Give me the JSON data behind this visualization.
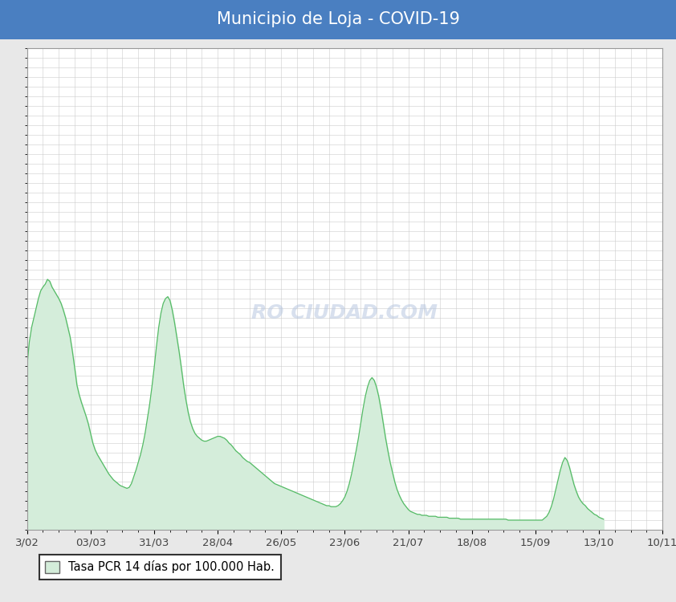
{
  "title": "Municipio de Loja - COVID-19",
  "title_bg_color": "#4a7fc1",
  "title_text_color": "#ffffff",
  "plot_bg_color": "#ffffff",
  "outer_bg_color": "#e8e8e8",
  "line_color": "#55bb66",
  "fill_color": "#d4edda",
  "grid_color": "#cccccc",
  "x_tick_labels": [
    "3/02",
    "03/03",
    "31/03",
    "28/04",
    "26/05",
    "23/06",
    "21/07",
    "18/08",
    "15/09",
    "13/10",
    "10/11"
  ],
  "legend_label": "Tasa PCR 14 días por 100.000 Hab.",
  "legend_fill_color": "#d4edda",
  "legend_edge_color": "#55bb66",
  "ylim": [
    0,
    500
  ],
  "figsize": [
    8.42,
    7.5
  ],
  "dpi": 100,
  "watermark": "RO CIUDAD.COM",
  "y_values": [
    170,
    195,
    210,
    220,
    230,
    240,
    248,
    252,
    255,
    260,
    258,
    252,
    248,
    244,
    240,
    235,
    228,
    220,
    210,
    200,
    185,
    168,
    150,
    140,
    132,
    125,
    118,
    110,
    100,
    90,
    83,
    78,
    74,
    70,
    66,
    62,
    58,
    55,
    52,
    50,
    48,
    46,
    45,
    44,
    43,
    44,
    48,
    55,
    62,
    70,
    78,
    88,
    100,
    115,
    130,
    148,
    168,
    190,
    210,
    225,
    235,
    240,
    242,
    238,
    228,
    215,
    200,
    185,
    168,
    150,
    135,
    122,
    112,
    105,
    100,
    97,
    95,
    93,
    92,
    92,
    93,
    94,
    95,
    96,
    97,
    97,
    96,
    95,
    93,
    90,
    88,
    85,
    82,
    80,
    78,
    75,
    73,
    71,
    70,
    68,
    66,
    64,
    62,
    60,
    58,
    56,
    54,
    52,
    50,
    48,
    47,
    46,
    45,
    44,
    43,
    42,
    41,
    40,
    39,
    38,
    37,
    36,
    35,
    34,
    33,
    32,
    31,
    30,
    29,
    28,
    27,
    26,
    25,
    25,
    24,
    24,
    24,
    25,
    27,
    30,
    34,
    40,
    48,
    58,
    70,
    82,
    95,
    110,
    125,
    138,
    148,
    155,
    158,
    155,
    148,
    138,
    125,
    110,
    95,
    82,
    70,
    60,
    50,
    42,
    36,
    31,
    27,
    24,
    21,
    19,
    18,
    17,
    16,
    16,
    15,
    15,
    15,
    14,
    14,
    14,
    14,
    13,
    13,
    13,
    13,
    13,
    12,
    12,
    12,
    12,
    12,
    11,
    11,
    11,
    11,
    11,
    11,
    11,
    11,
    11,
    11,
    11,
    11,
    11,
    11,
    11,
    11,
    11,
    11,
    11,
    11,
    11,
    10,
    10,
    10,
    10,
    10,
    10,
    10,
    10,
    10,
    10,
    10,
    10,
    10,
    10,
    10,
    10,
    12,
    14,
    18,
    24,
    32,
    42,
    52,
    62,
    70,
    75,
    72,
    65,
    56,
    47,
    40,
    34,
    30,
    27,
    25,
    22,
    20,
    18,
    16,
    15,
    13,
    12,
    11
  ]
}
